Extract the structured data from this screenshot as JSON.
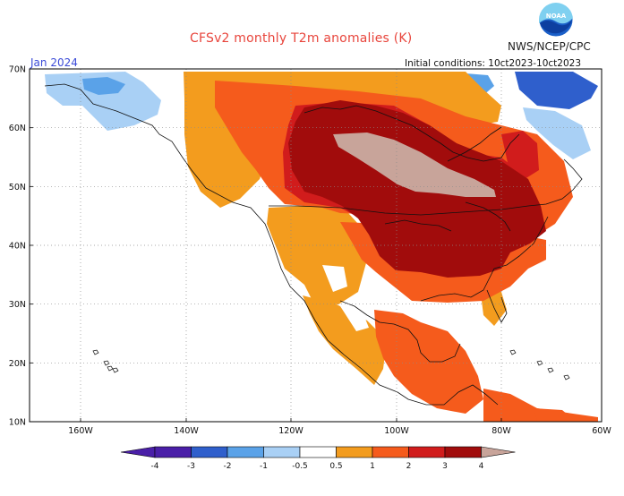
{
  "header": {
    "title": "CFSv2 monthly T2m anomalies (K)",
    "agency": "NWS/NCEP/CPC",
    "month": "Jan 2024",
    "initial_conditions": "Initial conditions: 10ct2023-10ct2023"
  },
  "logo": {
    "text": "NOAA",
    "icon": "noaa-logo-icon"
  },
  "map": {
    "region": "North America",
    "lat_labels": [
      "70N",
      "60N",
      "50N",
      "40N",
      "30N",
      "20N",
      "10N"
    ],
    "lon_labels": [
      "160W",
      "140W",
      "120W",
      "100W",
      "80W",
      "60W"
    ]
  },
  "colorbar": {
    "labels": [
      "-4",
      "-3",
      "-2",
      "-1",
      "-0.5",
      "0.5",
      "1",
      "2",
      "3",
      "4"
    ],
    "colors": [
      "#4a1fa8",
      "#2f5fcc",
      "#5aa2e8",
      "#a9d0f5",
      "#ffffff",
      "#f39c1e",
      "#f55b1c",
      "#d11c1c",
      "#a10c0c",
      "#c8a49a"
    ]
  },
  "palette": {
    "light_blue": "#a9d0f5",
    "blue": "#5aa2e8",
    "dark_blue": "#2f5fcc",
    "purple": "#4a1fa8",
    "orange": "#f39c1e",
    "red_orange": "#f55b1c",
    "red": "#d11c1c",
    "dark_red": "#a10c0c",
    "tan": "#c8a49a",
    "title_red": "#e8453c",
    "month_blue": "#3b4bd8"
  }
}
